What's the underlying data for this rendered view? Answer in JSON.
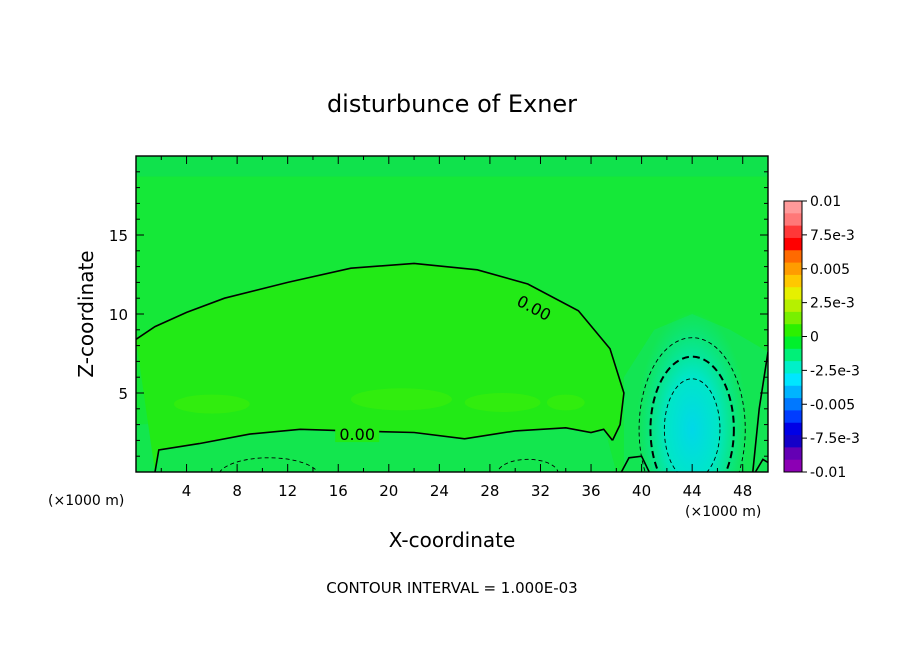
{
  "chart_data": {
    "type": "heatmap",
    "title": "disturbunce of Exner",
    "xlabel": "X-coordinate",
    "ylabel": "Z-coordinate",
    "x_unit": "(×1000 m)",
    "xlim": [
      0,
      50
    ],
    "ylim": [
      0,
      20
    ],
    "x_ticks": [
      4,
      8,
      12,
      16,
      20,
      24,
      28,
      32,
      36,
      40,
      44,
      48
    ],
    "y_ticks": [
      5,
      10,
      15
    ],
    "contour_labels": [
      {
        "text": "0.00",
        "x": 31.5,
        "y": 10.4
      },
      {
        "text": "0.00",
        "x": 17.5,
        "y": 2.4
      }
    ],
    "zero_contours": [
      {
        "points": [
          [
            0,
            8.4
          ],
          [
            1.5,
            9.2
          ],
          [
            4,
            10.1
          ],
          [
            7,
            11.0
          ],
          [
            12,
            12.0
          ],
          [
            17,
            12.9
          ],
          [
            22,
            13.2
          ],
          [
            27,
            12.8
          ],
          [
            31,
            11.9
          ],
          [
            35,
            10.2
          ],
          [
            37.5,
            7.8
          ],
          [
            38.6,
            5.0
          ],
          [
            38.3,
            3.0
          ],
          [
            37.7,
            2.0
          ]
        ]
      },
      {
        "points": [
          [
            1.5,
            0
          ],
          [
            1.8,
            1.4
          ],
          [
            5,
            1.8
          ],
          [
            9,
            2.4
          ],
          [
            13,
            2.7
          ],
          [
            17,
            2.6
          ],
          [
            22,
            2.5
          ],
          [
            26,
            2.1
          ],
          [
            30,
            2.6
          ],
          [
            34,
            2.8
          ],
          [
            36,
            2.5
          ],
          [
            37,
            2.7
          ],
          [
            37.7,
            2.0
          ]
        ]
      },
      {
        "points": [
          [
            38.4,
            0
          ],
          [
            39,
            0.9
          ],
          [
            40,
            1.0
          ],
          [
            40.6,
            0
          ]
        ]
      },
      {
        "points": [
          [
            48.8,
            0
          ],
          [
            49.3,
            4.0
          ],
          [
            50,
            7.6
          ]
        ]
      },
      {
        "points": [
          [
            49.0,
            0
          ],
          [
            49.6,
            0.8
          ],
          [
            50,
            0.6
          ]
        ]
      }
    ],
    "negative_contours": [
      {
        "level": -0.001,
        "center": [
          44,
          2.7
        ],
        "rx": 4.2,
        "ry": 5.8,
        "dash": "thin"
      },
      {
        "level": -0.001,
        "center": [
          10.5,
          -0.3
        ],
        "rx": 4.0,
        "ry": 1.2,
        "dash": "thin"
      },
      {
        "level": -0.001,
        "center": [
          31,
          -0.1
        ],
        "rx": 2.4,
        "ry": 0.9,
        "dash": "thin"
      },
      {
        "level": -0.002,
        "center": [
          44,
          2.7
        ],
        "rx": 3.3,
        "ry": 4.6,
        "dash": "thick"
      },
      {
        "level": -0.003,
        "center": [
          44,
          2.7
        ],
        "rx": 2.2,
        "ry": 3.2,
        "dash": "thin"
      }
    ],
    "shading": {
      "background": "#15e838",
      "top_band": {
        "color": "#10e24c",
        "ymin": 18.7,
        "ymax": 20
      },
      "near_zero": {
        "color": "#22ea16"
      },
      "weak_negative": {
        "color": "#12e460"
      },
      "cyan_anomaly": {
        "center": [
          44,
          2.7
        ],
        "colors": [
          "#00e6a8",
          "#00e6c8",
          "#00d8e8"
        ]
      }
    },
    "colorbar": {
      "levels": [
        "0.01",
        "7.5e-3",
        "0.005",
        "2.5e-3",
        "0",
        "-2.5e-3",
        "-0.005",
        "-7.5e-3",
        "-0.01"
      ],
      "colors": [
        "#ff9a9a",
        "#ff7878",
        "#ff3838",
        "#ff0000",
        "#ff6a00",
        "#ff9c00",
        "#ffc800",
        "#e6f000",
        "#b6f000",
        "#78f000",
        "#2cf000",
        "#00f02c",
        "#00f078",
        "#00f0c8",
        "#00e6ff",
        "#00b4ff",
        "#0078ff",
        "#003cff",
        "#0000e6",
        "#1400c8",
        "#6400b4",
        "#8c00b4"
      ]
    },
    "grid": false,
    "legend_position": "right"
  },
  "footer": {
    "contour_interval": "CONTOUR INTERVAL = 1.000E-03"
  }
}
